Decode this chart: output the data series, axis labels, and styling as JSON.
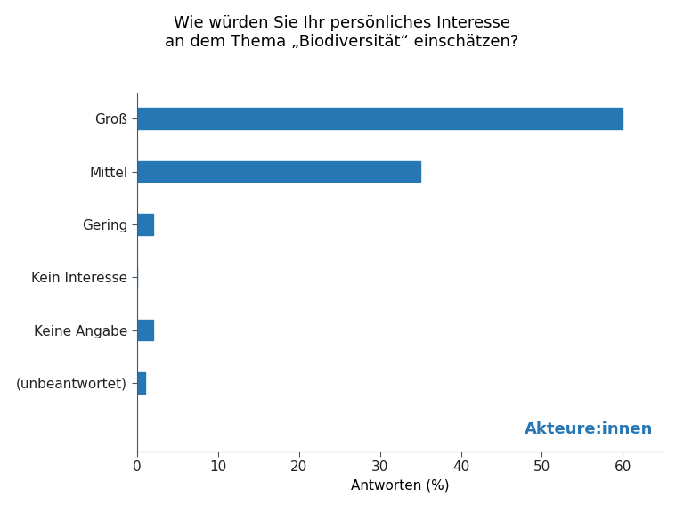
{
  "title": "Wie würden Sie Ihr persönliches Interesse\nan dem Thema „Biodiversität“ einschätzen?",
  "categories": [
    "Groß",
    "Mittel",
    "Gering",
    "Kein Interesse",
    "Keine Angabe",
    "(unbeantwortet)"
  ],
  "values": [
    60,
    35,
    2,
    0,
    2,
    1
  ],
  "bar_color": "#2777B4",
  "xlabel": "Antworten (%)",
  "xlim": [
    0,
    65
  ],
  "xticks": [
    0,
    10,
    20,
    30,
    40,
    50,
    60
  ],
  "annotation_text": "Akteure:innen",
  "annotation_color": "#2777B4",
  "background_color": "#ffffff",
  "title_fontsize": 13,
  "label_fontsize": 11,
  "tick_fontsize": 11,
  "annotation_fontsize": 13,
  "bar_height": 0.4
}
